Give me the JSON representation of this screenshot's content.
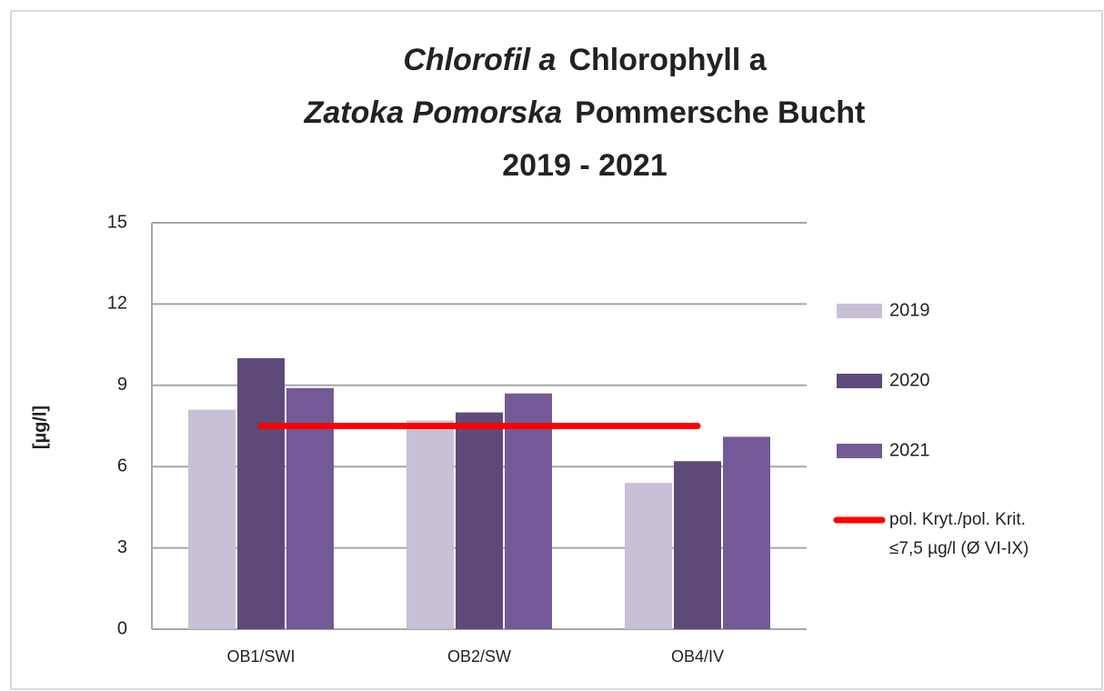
{
  "chart_data": {
    "type": "bar",
    "title": [
      [
        {
          "text": "Chlorofil a",
          "italic": true
        },
        {
          "text": "Chlorophyll a",
          "italic": false
        }
      ],
      [
        {
          "text": "Zatoka Pomorska",
          "italic": true
        },
        {
          "text": "Pommersche Bucht",
          "italic": false
        }
      ],
      [
        {
          "text": "2019 - 2021",
          "italic": false
        }
      ]
    ],
    "y_label": "[µg/l]",
    "categories": [
      "OB1/SWI",
      "OB2/SW",
      "OB4/IV"
    ],
    "series": [
      {
        "name": "2019",
        "color": "#c8c0d6",
        "values": [
          8.1,
          7.7,
          5.4
        ]
      },
      {
        "name": "2020",
        "color": "#5e4a7a",
        "values": [
          10.0,
          8.0,
          6.2
        ]
      },
      {
        "name": "2021",
        "color": "#735a96",
        "values": [
          8.9,
          8.7,
          7.1
        ]
      }
    ],
    "threshold": {
      "name": [
        "pol. Kryt./pol. Krit.",
        "≤7,5 µg/l (Ø VI-IX)"
      ],
      "value": 7.5,
      "color": "#ff0000"
    },
    "ylim": [
      0,
      15
    ],
    "yticks": [
      0,
      3,
      6,
      9,
      12,
      15
    ],
    "grid": true,
    "legend": "right"
  }
}
